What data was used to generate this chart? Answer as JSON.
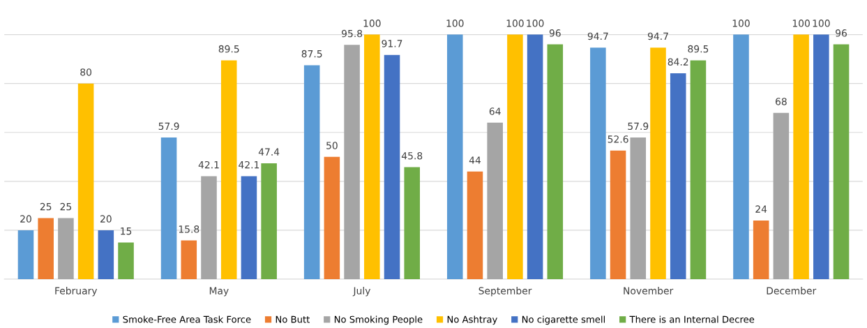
{
  "chart_data": {
    "type": "bar",
    "categories": [
      "February",
      "May",
      "July",
      "September",
      "November",
      "December"
    ],
    "series": [
      {
        "name": "Smoke-Free Area Task Force",
        "color": "#5b9bd5",
        "values": [
          20,
          57.9,
          87.5,
          100,
          94.7,
          100
        ]
      },
      {
        "name": "No Butt",
        "color": "#ed7d31",
        "values": [
          25,
          15.8,
          50,
          44,
          52.6,
          24
        ]
      },
      {
        "name": "No Smoking People",
        "color": "#a5a5a5",
        "values": [
          25,
          42.1,
          95.8,
          64,
          57.9,
          68
        ]
      },
      {
        "name": "No Ashtray",
        "color": "#ffc000",
        "values": [
          80,
          89.5,
          100,
          100,
          94.7,
          100
        ]
      },
      {
        "name": "No cigarette smell",
        "color": "#4472c4",
        "values": [
          20,
          42.1,
          91.7,
          100,
          84.2,
          100
        ]
      },
      {
        "name": "There is an Internal Decree",
        "color": "#70ad47",
        "values": [
          15,
          47.4,
          45.8,
          96,
          89.5,
          96
        ]
      }
    ],
    "yticks": [
      0,
      20,
      40,
      60,
      80,
      100
    ],
    "grid": "y",
    "tick_labels": "x",
    "data_labels": true,
    "legend": "bottom"
  }
}
